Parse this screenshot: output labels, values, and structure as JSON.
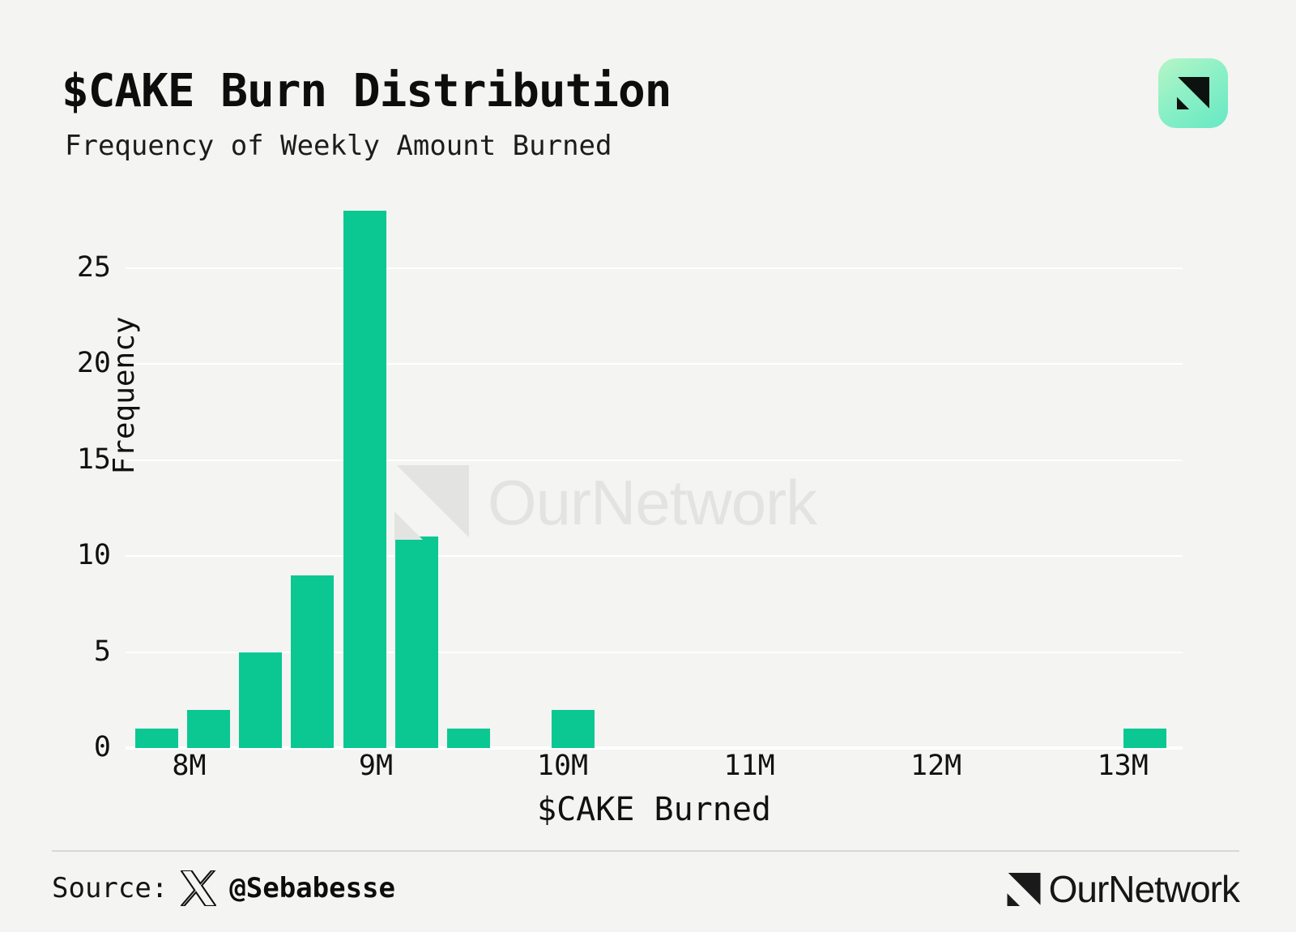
{
  "header": {
    "title": "$CAKE Burn Distribution",
    "subtitle": "Frequency of Weekly Amount Burned"
  },
  "chart_data": {
    "type": "bar",
    "title": "$CAKE Burn Distribution",
    "subtitle": "Frequency of Weekly Amount Burned",
    "xlabel": "$CAKE Burned",
    "ylabel": "Frequency",
    "bin_start": 7.687,
    "bin_width": 0.2785,
    "counts": [
      1,
      2,
      5,
      9,
      28,
      11,
      1,
      0,
      2,
      0,
      0,
      0,
      0,
      0,
      0,
      0,
      0,
      0,
      0,
      1
    ],
    "x_domain": [
      7.66,
      13.32
    ],
    "ylim": [
      0,
      28.2
    ],
    "x_ticks": [
      {
        "value": 8,
        "label": "8M"
      },
      {
        "value": 9,
        "label": "9M"
      },
      {
        "value": 10,
        "label": "10M"
      },
      {
        "value": 11,
        "label": "11M"
      },
      {
        "value": 12,
        "label": "12M"
      },
      {
        "value": 13,
        "label": "13M"
      }
    ],
    "y_ticks": [
      {
        "value": 0,
        "label": "0"
      },
      {
        "value": 5,
        "label": "5"
      },
      {
        "value": 10,
        "label": "10"
      },
      {
        "value": 15,
        "label": "15"
      },
      {
        "value": 20,
        "label": "20"
      },
      {
        "value": 25,
        "label": "25"
      }
    ],
    "grid": true,
    "legend": "none",
    "bar_color": "#0bc893"
  },
  "watermark": {
    "brand": "OurNetwork"
  },
  "footer": {
    "source_label": "Source:",
    "source_handle": "@Sebabesse",
    "brand": "OurNetwork"
  },
  "colors": {
    "background": "#f4f4f2",
    "bar": "#0bc893",
    "gridline": "#ffffff",
    "watermark": "#e3e3e1",
    "divider": "#d8d8d6",
    "icon_gradient_start": "#b7f5c6",
    "icon_gradient_end": "#66e8c3"
  }
}
